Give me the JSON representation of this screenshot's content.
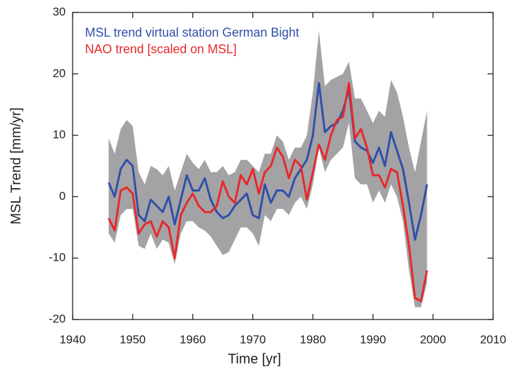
{
  "chart_data": {
    "type": "line",
    "xlabel": "Time [yr]",
    "ylabel": "MSL Trend [mm/yr]",
    "x": [
      1946,
      1947,
      1948,
      1949,
      1950,
      1951,
      1952,
      1953,
      1954,
      1955,
      1956,
      1957,
      1958,
      1959,
      1960,
      1961,
      1962,
      1963,
      1964,
      1965,
      1966,
      1967,
      1968,
      1969,
      1970,
      1971,
      1972,
      1973,
      1974,
      1975,
      1976,
      1977,
      1978,
      1979,
      1980,
      1981,
      1982,
      1983,
      1984,
      1985,
      1986,
      1987,
      1988,
      1989,
      1990,
      1991,
      1992,
      1993,
      1994,
      1995,
      1996,
      1997,
      1998,
      1999
    ],
    "series": [
      {
        "name": "MSL trend virtual station German Bight",
        "color": "#2f4fa8",
        "values": [
          2.3,
          0,
          4.5,
          6,
          5,
          -3,
          -4,
          -0.5,
          -1.5,
          -2.5,
          0,
          -4.5,
          -0.5,
          3.5,
          1,
          1,
          3,
          -0.5,
          -2.5,
          -3.5,
          -3,
          -1.5,
          -0.5,
          0.5,
          -3,
          -3.5,
          2,
          -1,
          1,
          1,
          0,
          3,
          4.5,
          6,
          10,
          18.5,
          10.5,
          11.5,
          12,
          14,
          17.5,
          9,
          8,
          7.5,
          5.5,
          8,
          5,
          10.5,
          7.5,
          4.5,
          -1,
          -7,
          -3,
          2
        ]
      },
      {
        "name": "NAO trend [scaled on MSL]",
        "color": "#e8282b",
        "values": [
          -3.5,
          -5.5,
          1,
          1.5,
          0.5,
          -6,
          -4.5,
          -4,
          -6.5,
          -4,
          -5,
          -10,
          -3,
          -1,
          0.5,
          -1.5,
          -2.5,
          -2.5,
          -1.5,
          2.5,
          0,
          -1,
          3.5,
          2,
          4.5,
          0.5,
          4,
          5,
          8,
          6.5,
          3,
          6,
          5,
          -0.5,
          4,
          8.5,
          6,
          10,
          12.5,
          13,
          18.5,
          9.5,
          11,
          8,
          3.5,
          3.5,
          1.5,
          4.5,
          4,
          -1.5,
          -8,
          -16.5,
          -17,
          -12
        ]
      }
    ],
    "band": {
      "color": "#a3a3a5",
      "upper": [
        9.5,
        7,
        11,
        12.5,
        11.5,
        4,
        2,
        5,
        4.5,
        3.5,
        5,
        1,
        4,
        7,
        5.5,
        4.5,
        6,
        4,
        4,
        5,
        3.5,
        4,
        6,
        6,
        5,
        4,
        7,
        7,
        10,
        9,
        6,
        8,
        8,
        10,
        17,
        27,
        18,
        19,
        19.5,
        20,
        22,
        16,
        16,
        14,
        12,
        14,
        13,
        19,
        17,
        13,
        8,
        4,
        9,
        14
      ],
      "lower": [
        -6,
        -7.5,
        -3,
        -2,
        -2,
        -8,
        -8.5,
        -6,
        -8.5,
        -7,
        -7.5,
        -11,
        -6,
        -4,
        -4,
        -5,
        -5.5,
        -6.5,
        -8,
        -9.5,
        -9,
        -7,
        -5,
        -5,
        -6,
        -8,
        -3,
        -4,
        -2,
        -2,
        -3,
        -1,
        0,
        -2,
        2,
        8,
        4,
        6,
        7,
        8,
        12,
        3,
        2,
        2,
        -1,
        1,
        -1,
        2,
        0,
        -4,
        -12,
        -18,
        -18,
        -14
      ]
    },
    "xlim": [
      1940,
      2010
    ],
    "xticks": [
      1940,
      1950,
      1960,
      1970,
      1980,
      1990,
      2000,
      2010
    ],
    "ylim": [
      -20,
      30
    ],
    "yticks": [
      -20,
      -10,
      0,
      10,
      20,
      30
    ],
    "legend": "upper left",
    "grid": false
  }
}
